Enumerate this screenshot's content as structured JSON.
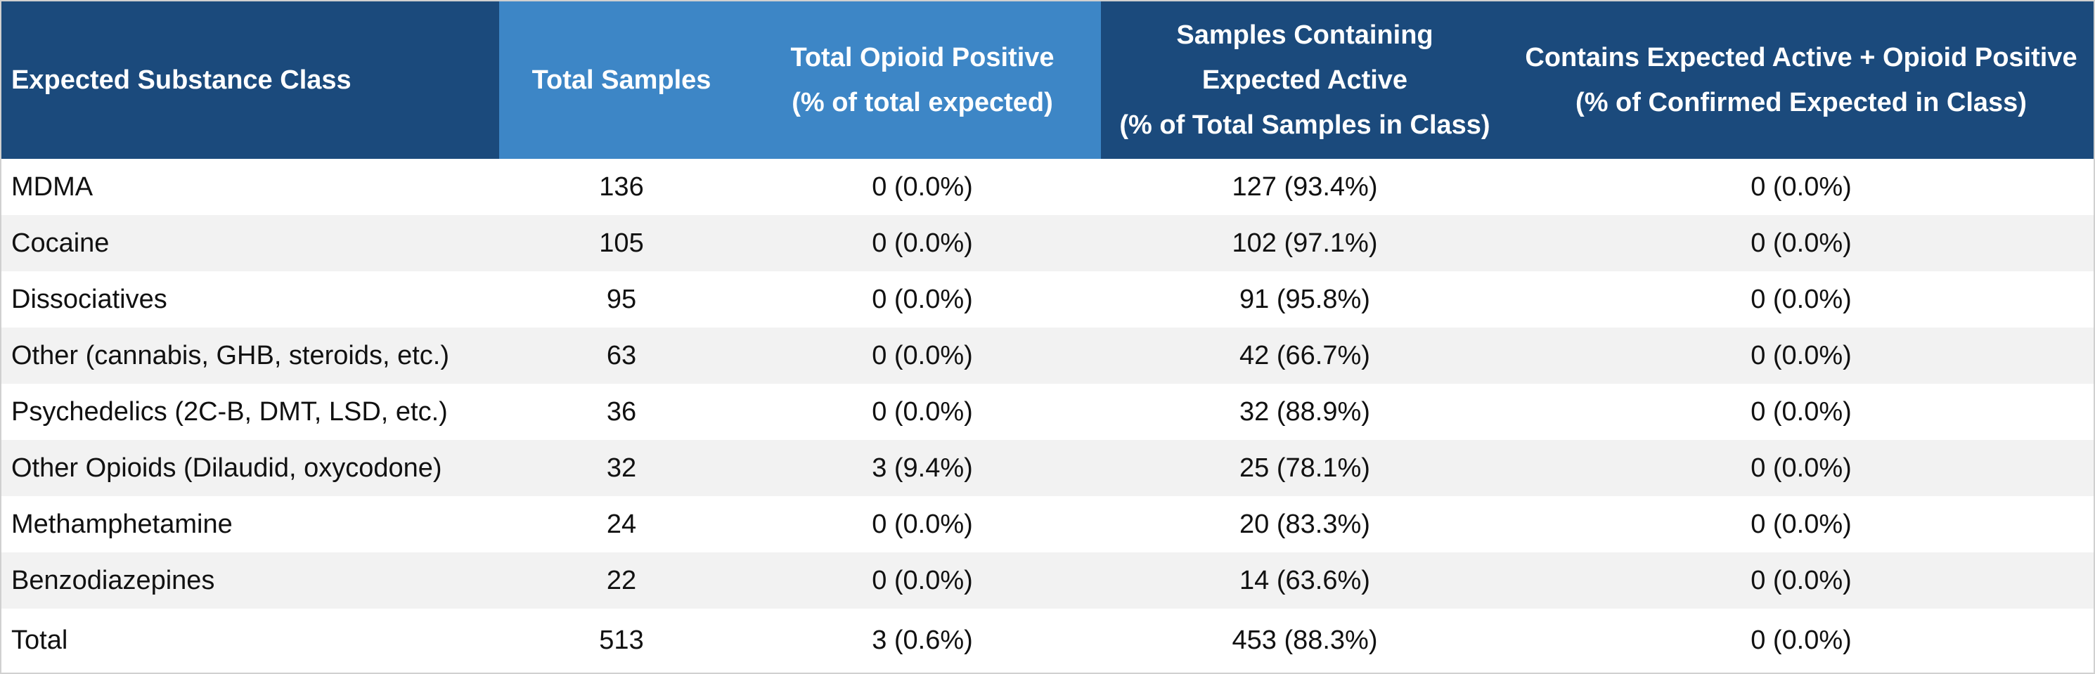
{
  "table": {
    "headers": [
      {
        "lines": [
          "Expected Substance Class"
        ]
      },
      {
        "lines": [
          "Total Samples"
        ]
      },
      {
        "lines": [
          "Total Opioid Positive",
          "(% of total expected)"
        ]
      },
      {
        "lines": [
          "Samples Containing",
          "Expected Active",
          "(% of Total Samples in Class)"
        ]
      },
      {
        "lines": [
          "Contains Expected Active + Opioid Positive",
          "(% of Confirmed Expected in Class)"
        ]
      }
    ],
    "rows": [
      [
        "MDMA",
        "136",
        "0 (0.0%)",
        "127 (93.4%)",
        "0 (0.0%)"
      ],
      [
        "Cocaine",
        "105",
        "0 (0.0%)",
        "102 (97.1%)",
        "0 (0.0%)"
      ],
      [
        "Dissociatives",
        "95",
        "0 (0.0%)",
        "91 (95.8%)",
        "0 (0.0%)"
      ],
      [
        "Other (cannabis, GHB, steroids, etc.)",
        "63",
        "0 (0.0%)",
        "42 (66.7%)",
        "0 (0.0%)"
      ],
      [
        "Psychedelics (2C-B, DMT, LSD, etc.)",
        "36",
        "0 (0.0%)",
        "32 (88.9%)",
        "0 (0.0%)"
      ],
      [
        "Other Opioids (Dilaudid, oxycodone)",
        "32",
        "3 (9.4%)",
        "25 (78.1%)",
        "0 (0.0%)"
      ],
      [
        "Methamphetamine",
        "24",
        "0 (0.0%)",
        "20 (83.3%)",
        "0 (0.0%)"
      ],
      [
        "Benzodiazepines",
        "22",
        "0 (0.0%)",
        "14 (63.6%)",
        "0 (0.0%)"
      ]
    ],
    "total": [
      "Total",
      "513",
      "3 (0.6%)",
      "453 (88.3%)",
      "0 (0.0%)"
    ]
  },
  "colors": {
    "header_dark": "#1b4a7c",
    "header_light": "#3d86c6",
    "row_stripe": "#f2f2f2"
  }
}
